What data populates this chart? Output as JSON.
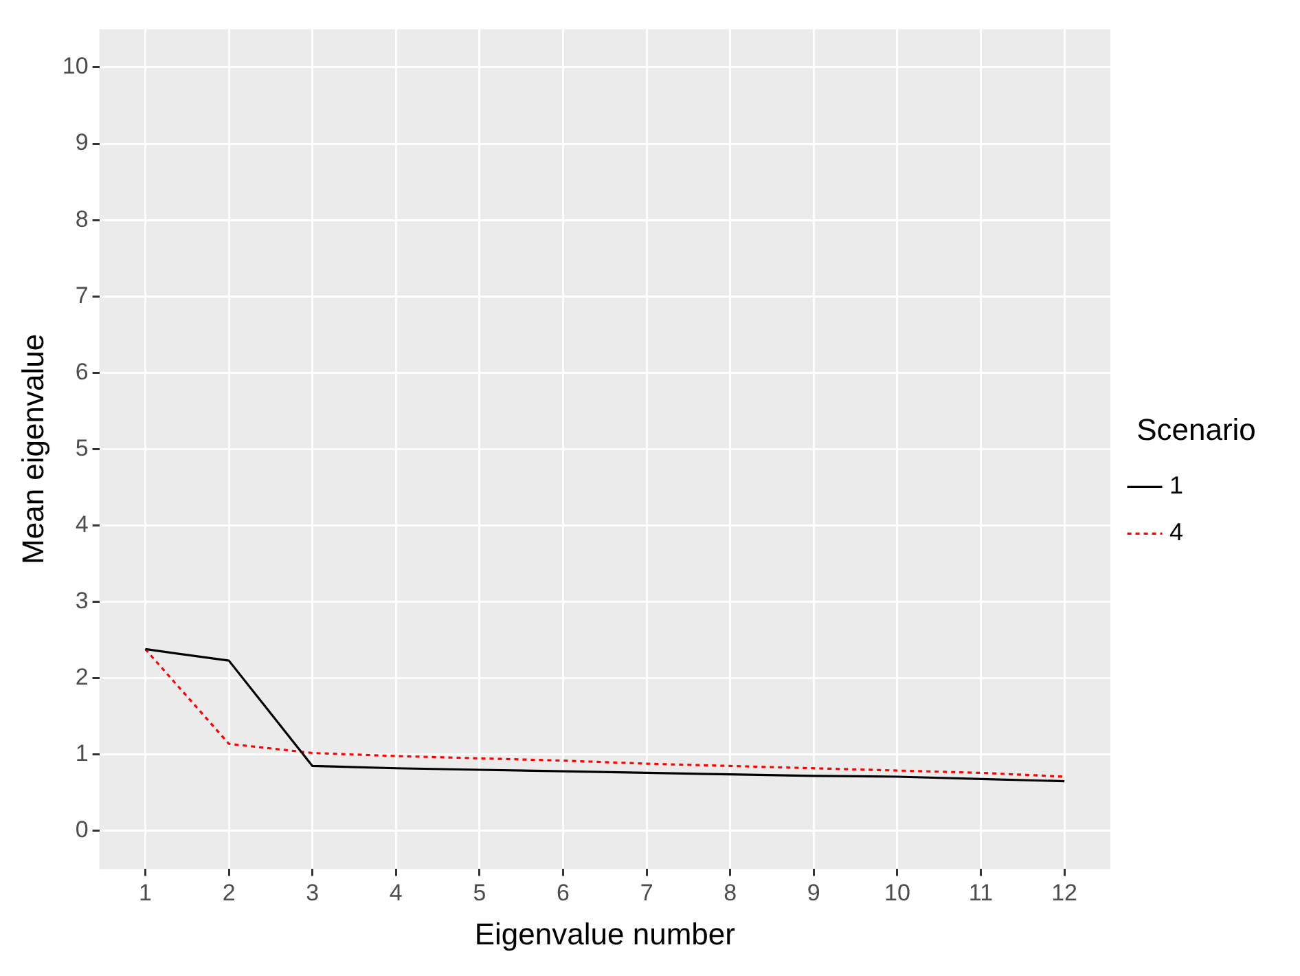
{
  "chart_data": {
    "type": "line",
    "xlabel": "Eigenvalue number",
    "ylabel": "Mean eigenvalue",
    "legend_title": "Scenario",
    "legend": "right",
    "grid": true,
    "marker": "none",
    "x": [
      1,
      2,
      3,
      4,
      5,
      6,
      7,
      8,
      9,
      10,
      11,
      12
    ],
    "xlim": [
      0.45,
      12.55
    ],
    "xticks": [
      1,
      2,
      3,
      4,
      5,
      6,
      7,
      8,
      9,
      10,
      11,
      12
    ],
    "ylim": [
      -0.5,
      10.5
    ],
    "yticks": [
      0,
      1,
      2,
      3,
      4,
      5,
      6,
      7,
      8,
      9,
      10
    ],
    "series": [
      {
        "name": "1",
        "color": "#000000",
        "line_style": "solid",
        "values": [
          2.38,
          2.23,
          0.85,
          0.82,
          0.8,
          0.78,
          0.76,
          0.74,
          0.72,
          0.71,
          0.68,
          0.65
        ]
      },
      {
        "name": "4",
        "color": "#ff0000",
        "line_style": "dotted",
        "values": [
          2.38,
          1.14,
          1.02,
          0.98,
          0.95,
          0.92,
          0.88,
          0.85,
          0.82,
          0.79,
          0.76,
          0.71
        ]
      }
    ]
  }
}
